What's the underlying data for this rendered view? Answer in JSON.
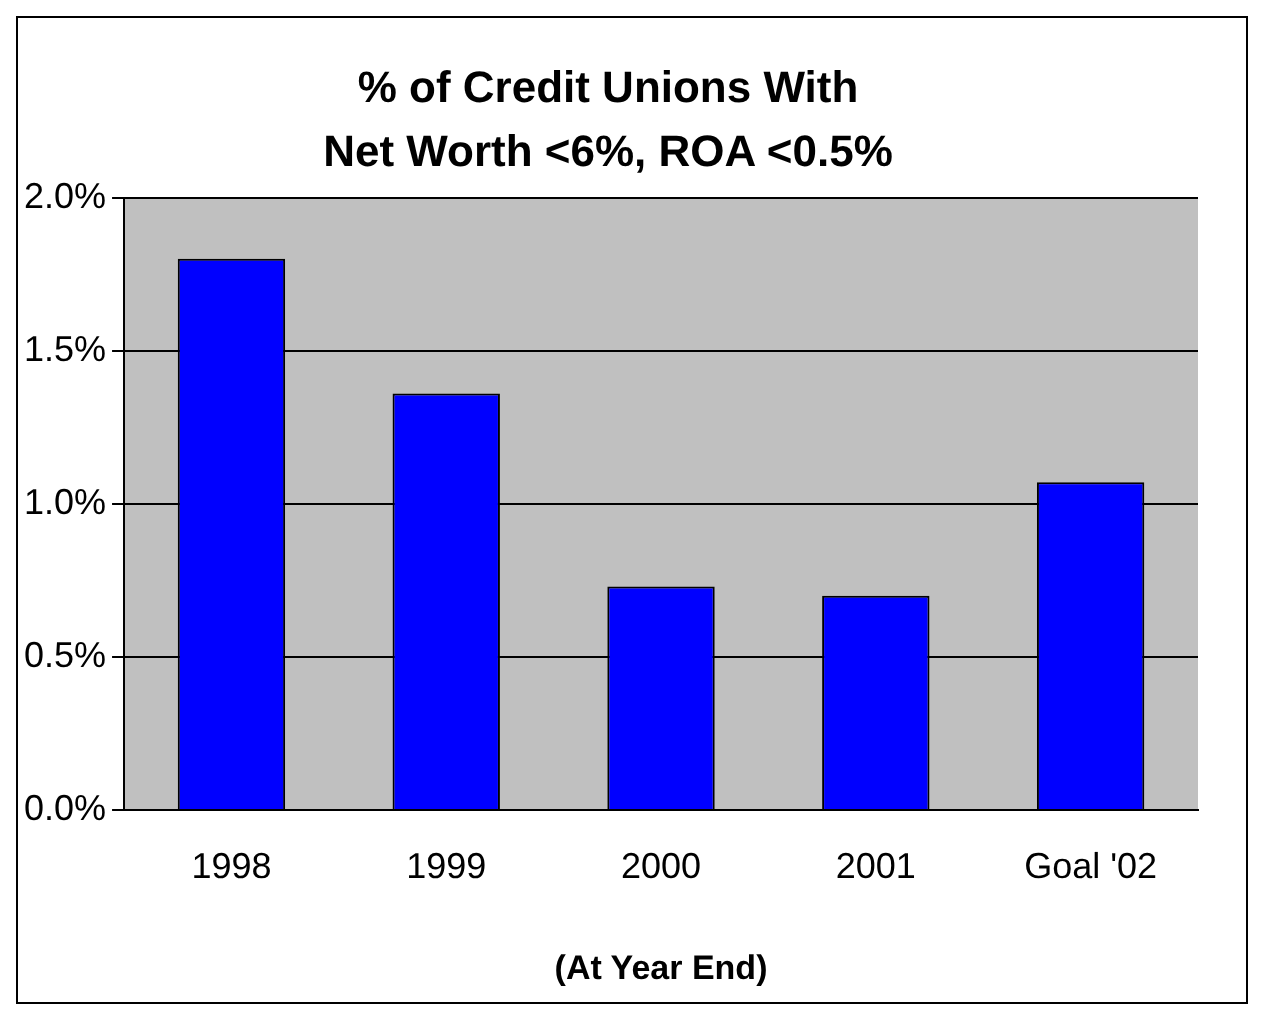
{
  "chart_data": {
    "type": "bar",
    "title": "% of Credit Unions With\nNet Worth <6%, ROA <0.5%",
    "xlabel": "(At Year End)",
    "categories": [
      "1998",
      "1999",
      "2000",
      "2001",
      "Goal '02"
    ],
    "values": [
      1.8,
      1.36,
      0.73,
      0.7,
      1.07
    ],
    "color": "#0000ff",
    "ylim": [
      0,
      2
    ],
    "yticks": [
      {
        "value": 0,
        "label": "0.0%"
      },
      {
        "value": 0.5,
        "label": "0.5%"
      },
      {
        "value": 1,
        "label": "1.0%"
      },
      {
        "value": 1.5,
        "label": "1.5%"
      },
      {
        "value": 2,
        "label": "2.0%"
      }
    ],
    "grid": "y",
    "legend": false
  }
}
